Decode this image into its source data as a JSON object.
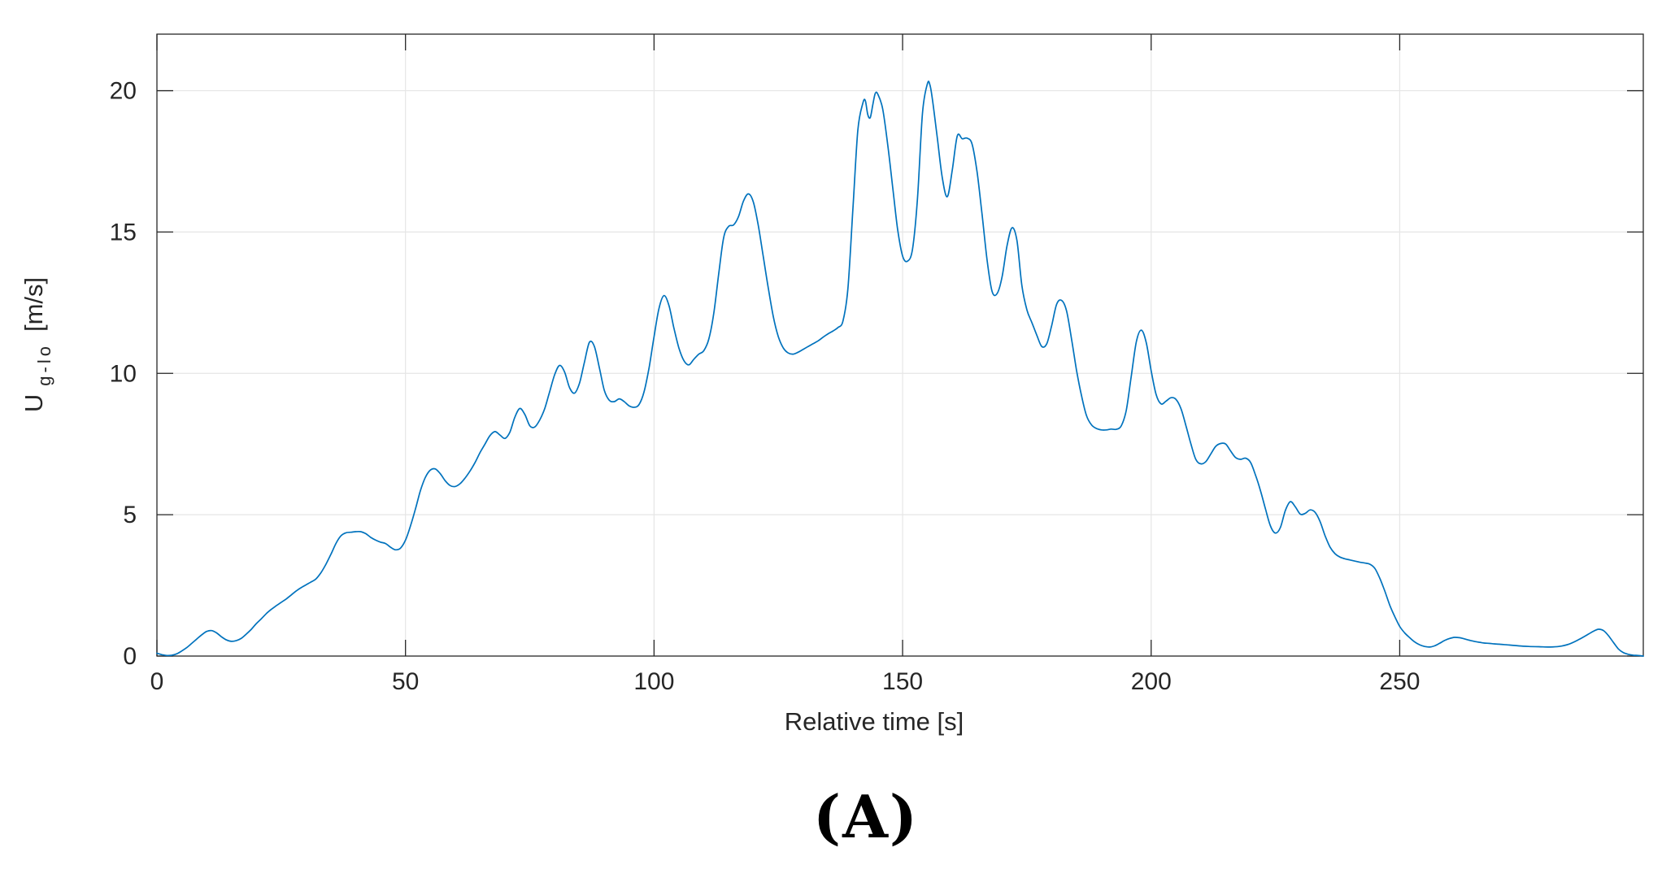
{
  "figure": {
    "caption": "(A)",
    "background": "#ffffff"
  },
  "chart_data": {
    "type": "line",
    "title": "",
    "xlabel": "Relative time [s]",
    "ylabel": "U_g-lo [m/s]",
    "ylabel_parts": {
      "base": "U",
      "sub": "g-lo",
      "unit": "[m/s]"
    },
    "xlim": [
      0,
      299
    ],
    "ylim": [
      0,
      22
    ],
    "xticks": [
      0,
      50,
      100,
      150,
      200,
      250
    ],
    "yticks": [
      0,
      5,
      10,
      15,
      20
    ],
    "grid": true,
    "legend": "none",
    "line_color": "#0072BD",
    "grid_color": "#e6e6e6",
    "axis_color": "#262626",
    "tick_label_color": "#262626",
    "series": [
      {
        "name": "U_g-lo",
        "points": [
          [
            0,
            0.1
          ],
          [
            1,
            0.05
          ],
          [
            2,
            0.02
          ],
          [
            3,
            0.03
          ],
          [
            4,
            0.08
          ],
          [
            5,
            0.18
          ],
          [
            6,
            0.3
          ],
          [
            7,
            0.45
          ],
          [
            8,
            0.6
          ],
          [
            9,
            0.75
          ],
          [
            10,
            0.87
          ],
          [
            11,
            0.9
          ],
          [
            12,
            0.82
          ],
          [
            13,
            0.68
          ],
          [
            14,
            0.57
          ],
          [
            15,
            0.52
          ],
          [
            16,
            0.55
          ],
          [
            17,
            0.63
          ],
          [
            18,
            0.78
          ],
          [
            19,
            0.95
          ],
          [
            20,
            1.15
          ],
          [
            21,
            1.32
          ],
          [
            22,
            1.5
          ],
          [
            23,
            1.65
          ],
          [
            24,
            1.78
          ],
          [
            25,
            1.9
          ],
          [
            26,
            2.02
          ],
          [
            27,
            2.16
          ],
          [
            28,
            2.3
          ],
          [
            29,
            2.42
          ],
          [
            30,
            2.52
          ],
          [
            31,
            2.62
          ],
          [
            32,
            2.73
          ],
          [
            33,
            2.95
          ],
          [
            34,
            3.25
          ],
          [
            35,
            3.6
          ],
          [
            36,
            3.98
          ],
          [
            37,
            4.25
          ],
          [
            38,
            4.36
          ],
          [
            39,
            4.38
          ],
          [
            40,
            4.4
          ],
          [
            41,
            4.4
          ],
          [
            42,
            4.33
          ],
          [
            43,
            4.2
          ],
          [
            44,
            4.1
          ],
          [
            45,
            4.03
          ],
          [
            46,
            3.98
          ],
          [
            47,
            3.85
          ],
          [
            48,
            3.76
          ],
          [
            49,
            3.82
          ],
          [
            50,
            4.1
          ],
          [
            51,
            4.6
          ],
          [
            52,
            5.2
          ],
          [
            53,
            5.85
          ],
          [
            54,
            6.32
          ],
          [
            55,
            6.58
          ],
          [
            56,
            6.62
          ],
          [
            57,
            6.45
          ],
          [
            58,
            6.2
          ],
          [
            59,
            6.03
          ],
          [
            60,
            6.0
          ],
          [
            61,
            6.1
          ],
          [
            62,
            6.3
          ],
          [
            63,
            6.55
          ],
          [
            64,
            6.85
          ],
          [
            65,
            7.2
          ],
          [
            66,
            7.5
          ],
          [
            67,
            7.8
          ],
          [
            68,
            7.94
          ],
          [
            69,
            7.82
          ],
          [
            70,
            7.7
          ],
          [
            71,
            7.92
          ],
          [
            72,
            8.45
          ],
          [
            73,
            8.76
          ],
          [
            74,
            8.55
          ],
          [
            75,
            8.15
          ],
          [
            76,
            8.1
          ],
          [
            77,
            8.35
          ],
          [
            78,
            8.75
          ],
          [
            79,
            9.35
          ],
          [
            80,
            9.95
          ],
          [
            81,
            10.28
          ],
          [
            82,
            10.05
          ],
          [
            83,
            9.5
          ],
          [
            84,
            9.3
          ],
          [
            85,
            9.65
          ],
          [
            86,
            10.4
          ],
          [
            87,
            11.1
          ],
          [
            88,
            10.95
          ],
          [
            89,
            10.2
          ],
          [
            90,
            9.4
          ],
          [
            91,
            9.05
          ],
          [
            92,
            9.0
          ],
          [
            93,
            9.1
          ],
          [
            94,
            9.0
          ],
          [
            95,
            8.85
          ],
          [
            96,
            8.8
          ],
          [
            97,
            8.9
          ],
          [
            98,
            9.35
          ],
          [
            99,
            10.2
          ],
          [
            100,
            11.3
          ],
          [
            101,
            12.3
          ],
          [
            102,
            12.75
          ],
          [
            103,
            12.4
          ],
          [
            104,
            11.6
          ],
          [
            105,
            10.9
          ],
          [
            106,
            10.45
          ],
          [
            107,
            10.3
          ],
          [
            108,
            10.5
          ],
          [
            109,
            10.68
          ],
          [
            110,
            10.8
          ],
          [
            111,
            11.2
          ],
          [
            112,
            12.1
          ],
          [
            113,
            13.5
          ],
          [
            114,
            14.8
          ],
          [
            115,
            15.2
          ],
          [
            116,
            15.25
          ],
          [
            117,
            15.55
          ],
          [
            118,
            16.1
          ],
          [
            119,
            16.35
          ],
          [
            120,
            16.05
          ],
          [
            121,
            15.2
          ],
          [
            122,
            14.1
          ],
          [
            123,
            13.0
          ],
          [
            124,
            12.0
          ],
          [
            125,
            11.3
          ],
          [
            126,
            10.9
          ],
          [
            127,
            10.72
          ],
          [
            128,
            10.68
          ],
          [
            129,
            10.75
          ],
          [
            130,
            10.85
          ],
          [
            131,
            10.95
          ],
          [
            132,
            11.05
          ],
          [
            133,
            11.15
          ],
          [
            134,
            11.28
          ],
          [
            135,
            11.4
          ],
          [
            136,
            11.5
          ],
          [
            137,
            11.62
          ],
          [
            138,
            11.85
          ],
          [
            139,
            13.0
          ],
          [
            140,
            15.8
          ],
          [
            141,
            18.6
          ],
          [
            142,
            19.55
          ],
          [
            142.5,
            19.65
          ],
          [
            143,
            19.15
          ],
          [
            143.5,
            19.05
          ],
          [
            144,
            19.5
          ],
          [
            144.5,
            19.9
          ],
          [
            145,
            19.88
          ],
          [
            146,
            19.35
          ],
          [
            147,
            18.1
          ],
          [
            148,
            16.6
          ],
          [
            149,
            15.1
          ],
          [
            150,
            14.15
          ],
          [
            151,
            13.97
          ],
          [
            152,
            14.4
          ],
          [
            153,
            16.2
          ],
          [
            154,
            19.2
          ],
          [
            155,
            20.25
          ],
          [
            155.5,
            20.2
          ],
          [
            156,
            19.7
          ],
          [
            157,
            18.3
          ],
          [
            158,
            16.9
          ],
          [
            159,
            16.25
          ],
          [
            160,
            17.2
          ],
          [
            161,
            18.4
          ],
          [
            162,
            18.3
          ],
          [
            163,
            18.32
          ],
          [
            164,
            18.1
          ],
          [
            165,
            17.1
          ],
          [
            166,
            15.6
          ],
          [
            167,
            14.0
          ],
          [
            168,
            12.9
          ],
          [
            169,
            12.82
          ],
          [
            170,
            13.4
          ],
          [
            171,
            14.5
          ],
          [
            172,
            15.15
          ],
          [
            173,
            14.7
          ],
          [
            174,
            13.1
          ],
          [
            175,
            12.25
          ],
          [
            176,
            11.8
          ],
          [
            177,
            11.35
          ],
          [
            178,
            10.95
          ],
          [
            179,
            11.05
          ],
          [
            180,
            11.7
          ],
          [
            181,
            12.45
          ],
          [
            182,
            12.58
          ],
          [
            183,
            12.2
          ],
          [
            184,
            11.2
          ],
          [
            185,
            10.1
          ],
          [
            186,
            9.2
          ],
          [
            187,
            8.5
          ],
          [
            188,
            8.18
          ],
          [
            189,
            8.05
          ],
          [
            190,
            8.0
          ],
          [
            191,
            8.0
          ],
          [
            192,
            8.03
          ],
          [
            193,
            8.02
          ],
          [
            194,
            8.15
          ],
          [
            195,
            8.7
          ],
          [
            196,
            9.9
          ],
          [
            197,
            11.1
          ],
          [
            198,
            11.53
          ],
          [
            199,
            11.1
          ],
          [
            200,
            10.1
          ],
          [
            201,
            9.25
          ],
          [
            202,
            8.92
          ],
          [
            203,
            9.02
          ],
          [
            204,
            9.14
          ],
          [
            205,
            9.08
          ],
          [
            206,
            8.75
          ],
          [
            207,
            8.15
          ],
          [
            208,
            7.5
          ],
          [
            209,
            6.95
          ],
          [
            210,
            6.8
          ],
          [
            211,
            6.88
          ],
          [
            212,
            7.15
          ],
          [
            213,
            7.42
          ],
          [
            214,
            7.52
          ],
          [
            215,
            7.5
          ],
          [
            216,
            7.25
          ],
          [
            217,
            7.02
          ],
          [
            218,
            6.96
          ],
          [
            219,
            7.0
          ],
          [
            220,
            6.85
          ],
          [
            221,
            6.4
          ],
          [
            222,
            5.85
          ],
          [
            223,
            5.2
          ],
          [
            224,
            4.6
          ],
          [
            225,
            4.35
          ],
          [
            226,
            4.55
          ],
          [
            227,
            5.15
          ],
          [
            228,
            5.46
          ],
          [
            229,
            5.28
          ],
          [
            230,
            5.02
          ],
          [
            231,
            5.05
          ],
          [
            232,
            5.17
          ],
          [
            233,
            5.08
          ],
          [
            234,
            4.75
          ],
          [
            235,
            4.25
          ],
          [
            236,
            3.85
          ],
          [
            237,
            3.62
          ],
          [
            238,
            3.5
          ],
          [
            239,
            3.44
          ],
          [
            240,
            3.4
          ],
          [
            241,
            3.36
          ],
          [
            242,
            3.32
          ],
          [
            243,
            3.29
          ],
          [
            244,
            3.25
          ],
          [
            245,
            3.1
          ],
          [
            246,
            2.75
          ],
          [
            247,
            2.3
          ],
          [
            248,
            1.8
          ],
          [
            249,
            1.4
          ],
          [
            250,
            1.05
          ],
          [
            251,
            0.82
          ],
          [
            252,
            0.65
          ],
          [
            253,
            0.5
          ],
          [
            254,
            0.4
          ],
          [
            255,
            0.34
          ],
          [
            256,
            0.32
          ],
          [
            257,
            0.36
          ],
          [
            258,
            0.45
          ],
          [
            259,
            0.55
          ],
          [
            260,
            0.62
          ],
          [
            261,
            0.66
          ],
          [
            262,
            0.65
          ],
          [
            263,
            0.61
          ],
          [
            264,
            0.56
          ],
          [
            265,
            0.52
          ],
          [
            266,
            0.49
          ],
          [
            267,
            0.46
          ],
          [
            268,
            0.45
          ],
          [
            269,
            0.43
          ],
          [
            270,
            0.42
          ],
          [
            272,
            0.39
          ],
          [
            274,
            0.36
          ],
          [
            276,
            0.34
          ],
          [
            278,
            0.33
          ],
          [
            280,
            0.32
          ],
          [
            282,
            0.34
          ],
          [
            284,
            0.42
          ],
          [
            286,
            0.58
          ],
          [
            288,
            0.78
          ],
          [
            289,
            0.88
          ],
          [
            290,
            0.95
          ],
          [
            291,
            0.9
          ],
          [
            292,
            0.72
          ],
          [
            293,
            0.48
          ],
          [
            294,
            0.25
          ],
          [
            295,
            0.12
          ],
          [
            296,
            0.06
          ],
          [
            297,
            0.03
          ],
          [
            298,
            0.02
          ],
          [
            299,
            0.0
          ]
        ]
      }
    ]
  }
}
